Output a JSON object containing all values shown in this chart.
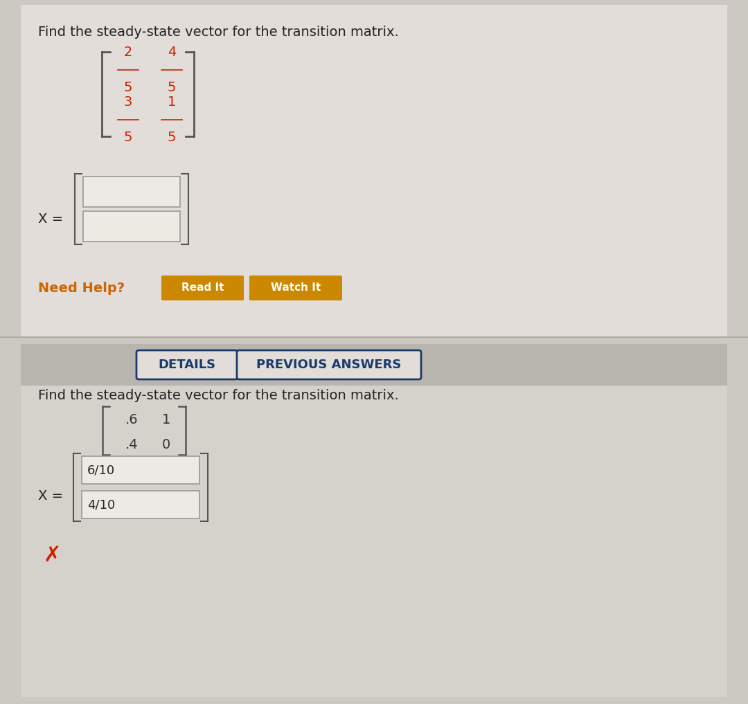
{
  "bg_color": "#ccc8c2",
  "panel1_bg": "#e2ddd8",
  "panel2_bg": "#d5d1cb",
  "divider_color": "#b0aba5",
  "title1": "Find the steady-state vector for the transition matrix.",
  "title2": "Find the steady-state vector for the transition matrix.",
  "matrix1_color": "#cc2200",
  "matrix2_color": "#333333",
  "x_label": "X =",
  "need_help_text": "Need Help?",
  "need_help_color": "#cc6600",
  "btn_read_it": "Read It",
  "btn_watch_it": "Watch It",
  "btn_color_orange": "#cc8800",
  "btn_text_color": "#ffffff",
  "details_text": "DETAILS",
  "prev_answers_text": "PREVIOUS ANSWERS",
  "btn_border_color": "#1a3a6b",
  "answer_box1": "6/10",
  "answer_box2": "4/10",
  "x_mark_color": "#cc2200",
  "title_fontsize": 14,
  "matrix_fontsize": 14,
  "label_fontsize": 14,
  "btn_fontsize": 11,
  "details_fontsize": 13,
  "answer_fontsize": 13
}
